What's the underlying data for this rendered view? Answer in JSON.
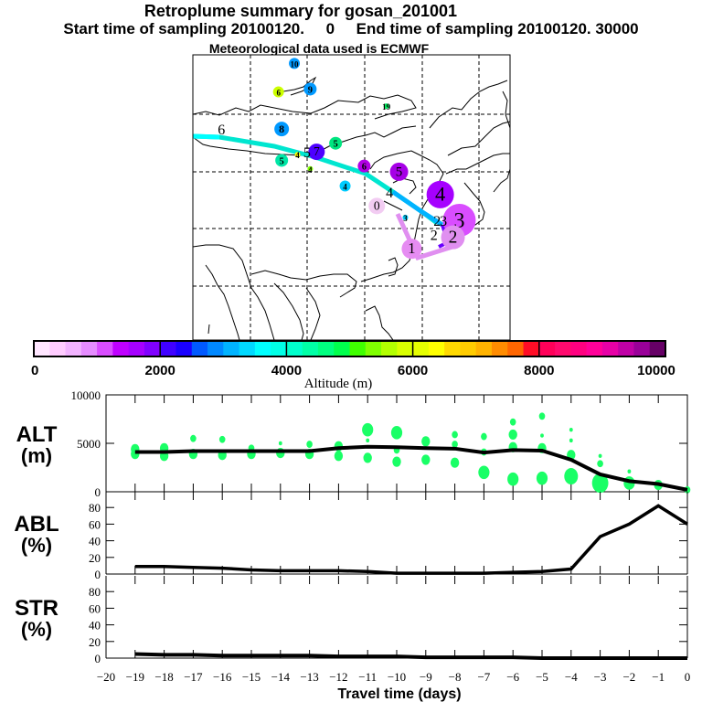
{
  "header": {
    "title": "Retroplume summary for gosan_201001",
    "subtitle": "Start time of sampling 20100120.     0     End time of sampling 20100120. 30000",
    "met_line": "Meteorological data used is ECMWF"
  },
  "colorbar": {
    "label": "Altitude (m)",
    "tick_labels": [
      "0",
      "2000",
      "4000",
      "6000",
      "8000",
      "10000"
    ],
    "range": [
      0,
      10000
    ],
    "colors": [
      "#ffe6ff",
      "#ffccff",
      "#f2b3ff",
      "#e68cff",
      "#d94dff",
      "#bf00ff",
      "#a600ff",
      "#8000ff",
      "#4000ff",
      "#1a00ff",
      "#0059ff",
      "#0088ff",
      "#00b3ff",
      "#00d9ff",
      "#00ffff",
      "#00ffe6",
      "#00ffcc",
      "#00ffa6",
      "#00ff80",
      "#00ff4d",
      "#40ff00",
      "#80ff00",
      "#b3ff00",
      "#d9ff00",
      "#e6ff00",
      "#ffff00",
      "#ffd900",
      "#ffcc00",
      "#ffb300",
      "#ff8c00",
      "#ff6600",
      "#ff0d26",
      "#ff0059",
      "#ff0a6e",
      "#ff0080",
      "#ff0099",
      "#e600a6",
      "#bf00a6",
      "#990099",
      "#660066"
    ]
  },
  "map": {
    "trajectory_labels": [
      {
        "label": "0",
        "lon": 0.58,
        "lat": 0.53,
        "color": "#f2ccf2",
        "r": 9
      },
      {
        "label": "1",
        "lon": 0.69,
        "lat": 0.68,
        "color": "#e68cf2",
        "r": 11
      },
      {
        "label": "2",
        "lon": 0.82,
        "lat": 0.64,
        "color": "#e08ff0",
        "r": 13
      },
      {
        "label": "3",
        "lon": 0.84,
        "lat": 0.58,
        "color": "#d94dff",
        "r": 18
      },
      {
        "label": "4",
        "lon": 0.78,
        "lat": 0.49,
        "color": "#a600ff",
        "r": 15
      },
      {
        "label": "5",
        "lon": 0.65,
        "lat": 0.41,
        "color": "#a600e6",
        "r": 10
      },
      {
        "label": "6",
        "lon": 0.54,
        "lat": 0.39,
        "color": "#b300e6",
        "r": 7
      },
      {
        "label": "7",
        "lon": 0.39,
        "lat": 0.34,
        "color": "#4d00ff",
        "r": 9
      },
      {
        "label": "8",
        "lon": 0.28,
        "lat": 0.26,
        "color": "#0099ff",
        "r": 8
      },
      {
        "label": "9",
        "lon": 0.37,
        "lat": 0.12,
        "color": "#0099ff",
        "r": 7
      },
      {
        "label": "10",
        "lon": 0.32,
        "lat": 0.03,
        "color": "#0099ff",
        "r": 6
      },
      {
        "label": "6",
        "lon": 0.27,
        "lat": 0.13,
        "color": "#ccff00",
        "r": 6
      },
      {
        "label": "5",
        "lon": 0.28,
        "lat": 0.37,
        "color": "#00e6a6",
        "r": 7
      },
      {
        "label": "5",
        "lon": 0.45,
        "lat": 0.31,
        "color": "#00e680",
        "r": 7
      },
      {
        "label": "4",
        "lon": 0.48,
        "lat": 0.46,
        "color": "#00ccff",
        "r": 6
      },
      {
        "label": "4",
        "lon": 0.37,
        "lat": 0.4,
        "color": "#80ff00",
        "r": 3
      },
      {
        "label": "4",
        "lon": 0.33,
        "lat": 0.35,
        "color": "#ffff00",
        "r": 3
      },
      {
        "label": "3",
        "lon": 0.67,
        "lat": 0.57,
        "color": "#00ccff",
        "r": 3
      },
      {
        "label": "19",
        "lon": 0.61,
        "lat": 0.18,
        "color": "#00ff66",
        "r": 3
      },
      {
        "label": "5",
        "lon": -0.01,
        "lat": 0.34,
        "color": "#b3e600",
        "r": 3
      }
    ],
    "main_track_labels": [
      {
        "label": "6",
        "lon": 0.09,
        "lat": 0.26
      },
      {
        "label": "5",
        "lon": 0.36,
        "lat": 0.34
      },
      {
        "label": "4",
        "lon": 0.62,
        "lat": 0.48
      },
      {
        "label": "2",
        "lon": 0.77,
        "lat": 0.58
      },
      {
        "label": "3",
        "lon": 0.79,
        "lat": 0.58
      },
      {
        "label": "2",
        "lon": 0.76,
        "lat": 0.63
      }
    ]
  },
  "chart_data": [
    {
      "type": "scatter",
      "panel": "ALT",
      "ylabel": "ALT\n(m)",
      "ylabel_lines": [
        "ALT",
        "(m)"
      ],
      "yticks": [
        "10000",
        "5000",
        "0"
      ],
      "ylim": [
        0,
        10000
      ],
      "xlim": [
        -20,
        0
      ],
      "line_series": {
        "name": "mean altitude",
        "x": [
          -19,
          -18,
          -17,
          -16,
          -15,
          -14,
          -13,
          -12,
          -11,
          -10,
          -9,
          -8,
          -7,
          -6,
          -5,
          -4,
          -3,
          -2,
          -1,
          0
        ],
        "y": [
          4100,
          4100,
          4200,
          4200,
          4200,
          4200,
          4200,
          4500,
          4650,
          4600,
          4500,
          4450,
          4050,
          4300,
          4250,
          3300,
          1800,
          1100,
          800,
          200
        ]
      },
      "dots": [
        {
          "x": -19,
          "y": 4400,
          "s": 3
        },
        {
          "x": -19,
          "y": 3900,
          "s": 3
        },
        {
          "x": -18,
          "y": 4500,
          "s": 3
        },
        {
          "x": -18,
          "y": 3700,
          "s": 3
        },
        {
          "x": -17,
          "y": 5500,
          "s": 2
        },
        {
          "x": -17,
          "y": 3900,
          "s": 3
        },
        {
          "x": -16,
          "y": 5400,
          "s": 2
        },
        {
          "x": -16,
          "y": 3800,
          "s": 3
        },
        {
          "x": -15,
          "y": 4500,
          "s": 2
        },
        {
          "x": -15,
          "y": 3900,
          "s": 3
        },
        {
          "x": -14,
          "y": 5000,
          "s": 1
        },
        {
          "x": -14,
          "y": 4000,
          "s": 3
        },
        {
          "x": -13,
          "y": 4900,
          "s": 2
        },
        {
          "x": -13,
          "y": 3900,
          "s": 3
        },
        {
          "x": -12,
          "y": 4700,
          "s": 3
        },
        {
          "x": -12,
          "y": 3700,
          "s": 3
        },
        {
          "x": -11,
          "y": 6400,
          "s": 4
        },
        {
          "x": -11,
          "y": 5300,
          "s": 1
        },
        {
          "x": -11,
          "y": 3500,
          "s": 3
        },
        {
          "x": -10,
          "y": 6100,
          "s": 4
        },
        {
          "x": -10,
          "y": 4300,
          "s": 2
        },
        {
          "x": -10,
          "y": 3100,
          "s": 3
        },
        {
          "x": -9,
          "y": 5200,
          "s": 3
        },
        {
          "x": -9,
          "y": 3300,
          "s": 3
        },
        {
          "x": -8,
          "y": 5900,
          "s": 2
        },
        {
          "x": -8,
          "y": 4900,
          "s": 2
        },
        {
          "x": -8,
          "y": 3000,
          "s": 3
        },
        {
          "x": -7,
          "y": 5700,
          "s": 2
        },
        {
          "x": -7,
          "y": 4100,
          "s": 2
        },
        {
          "x": -7,
          "y": 2000,
          "s": 4
        },
        {
          "x": -6,
          "y": 7200,
          "s": 2
        },
        {
          "x": -6,
          "y": 5900,
          "s": 3
        },
        {
          "x": -6,
          "y": 4600,
          "s": 3
        },
        {
          "x": -6,
          "y": 1300,
          "s": 4
        },
        {
          "x": -5,
          "y": 7800,
          "s": 2
        },
        {
          "x": -5,
          "y": 5800,
          "s": 1
        },
        {
          "x": -5,
          "y": 4500,
          "s": 3
        },
        {
          "x": -5,
          "y": 1400,
          "s": 4
        },
        {
          "x": -4,
          "y": 6400,
          "s": 1
        },
        {
          "x": -4,
          "y": 5300,
          "s": 1
        },
        {
          "x": -4,
          "y": 3800,
          "s": 3
        },
        {
          "x": -4,
          "y": 1600,
          "s": 5
        },
        {
          "x": -3,
          "y": 3700,
          "s": 1
        },
        {
          "x": -3,
          "y": 2900,
          "s": 2
        },
        {
          "x": -3,
          "y": 900,
          "s": 6
        },
        {
          "x": -2,
          "y": 2100,
          "s": 1
        },
        {
          "x": -2,
          "y": 900,
          "s": 4
        },
        {
          "x": -1,
          "y": 700,
          "s": 3
        },
        {
          "x": 0,
          "y": 200,
          "s": 2
        }
      ]
    },
    {
      "type": "line",
      "panel": "ABL",
      "ylabel_lines": [
        "ABL",
        "(%)"
      ],
      "yticks": [
        "80",
        "60",
        "40",
        "20",
        "0"
      ],
      "ylim": [
        0,
        100
      ],
      "xlim": [
        -20,
        0
      ],
      "x": [
        -19,
        -18,
        -17,
        -16,
        -15,
        -14,
        -13,
        -12,
        -11,
        -10,
        -9,
        -8,
        -7,
        -6,
        -5,
        -4,
        -3,
        -2,
        -1,
        0
      ],
      "y": [
        9,
        9,
        8,
        7,
        5,
        4,
        4,
        4,
        3,
        1,
        1,
        1,
        1,
        2,
        3,
        6,
        45,
        60,
        82,
        60
      ]
    },
    {
      "type": "line",
      "panel": "STR",
      "ylabel_lines": [
        "STR",
        "(%)"
      ],
      "yticks": [
        "80",
        "60",
        "40",
        "20",
        "0"
      ],
      "ylim": [
        0,
        100
      ],
      "xlim": [
        -20,
        0
      ],
      "x": [
        -19,
        -18,
        -17,
        -16,
        -15,
        -14,
        -13,
        -12,
        -11,
        -10,
        -9,
        -8,
        -7,
        -6,
        -5,
        -4,
        -3,
        -2,
        -1,
        0
      ],
      "y": [
        5,
        4,
        4,
        3,
        3,
        3,
        3,
        2,
        2,
        2,
        1,
        1,
        1,
        1,
        0,
        0,
        0,
        0,
        0,
        0
      ]
    }
  ],
  "xaxis": {
    "xlabel": "Travel time (days)",
    "tick_labels": [
      "−20",
      "−19",
      "−18",
      "−17",
      "−16",
      "−15",
      "−14",
      "−13",
      "−12",
      "−11",
      "−10",
      "−9",
      "−8",
      "−7",
      "−6",
      "−5",
      "−4",
      "−3",
      "−2",
      "−1",
      "0"
    ]
  }
}
